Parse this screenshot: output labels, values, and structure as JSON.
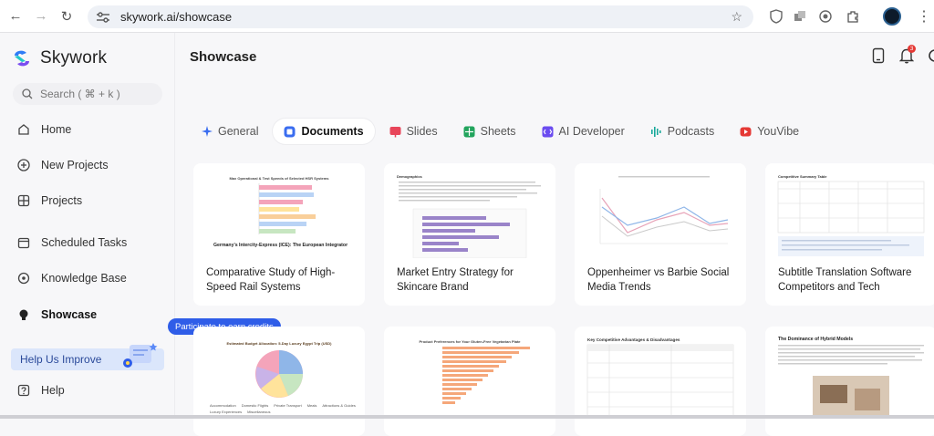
{
  "browser": {
    "url": "skywork.ai/showcase"
  },
  "sidebar": {
    "brand": "Skywork",
    "search_placeholder": "Search ( ⌘ + k )",
    "items": [
      {
        "label": "Home",
        "icon": "home-icon"
      },
      {
        "label": "New Projects",
        "icon": "plus-circle-icon"
      },
      {
        "label": "Projects",
        "icon": "grid-icon"
      },
      {
        "label": "Scheduled Tasks",
        "icon": "calendar-icon"
      },
      {
        "label": "Knowledge Base",
        "icon": "orbit-icon"
      },
      {
        "label": "Showcase",
        "icon": "bulb-icon",
        "active": true
      }
    ],
    "improve_label": "Help Us Improve",
    "improve_tooltip": "Participate to earn credits",
    "help_label": "Help"
  },
  "main": {
    "title": "Showcase",
    "notification_count": "3",
    "tabs": [
      {
        "label": "General",
        "color": "#3a6df0"
      },
      {
        "label": "Documents",
        "color": "#3a6df0",
        "active": true
      },
      {
        "label": "Slides",
        "color": "#e8455a"
      },
      {
        "label": "Sheets",
        "color": "#22a45d"
      },
      {
        "label": "AI Developer",
        "color": "#6b4cf0"
      },
      {
        "label": "Podcasts",
        "color": "#18a89a"
      },
      {
        "label": "YouVibe",
        "color": "#e53935"
      }
    ],
    "cards": [
      {
        "title": "Comparative Study of High-Speed Rail Systems",
        "thumb_heading": "Max Operational & Test Speeds of Selected HSR Systems",
        "thumb_caption": "Germany's Intercity-Express (ICE): The European Integrator"
      },
      {
        "title": "Market Entry Strategy for Skincare Brand",
        "thumb_heading": "Demographics"
      },
      {
        "title": "Oppenheimer vs Barbie Social Media Trends"
      },
      {
        "title": "Subtitle Translation Software Competitors and Tech",
        "thumb_heading": "Competitive Summary Table"
      },
      {
        "thumb_heading": "Estimated Budget Allocation: 5-Day Luxury Egypt Trip (USD)",
        "legend": [
          "Accommodation",
          "Domestic Flights",
          "Private Transport",
          "Meals",
          "Attractions & Guides",
          "Luxury Experiences",
          "Miscellaneous"
        ]
      },
      {
        "thumb_heading": "Product Preferences for Your Gluten-Free Vegetarian Plate"
      },
      {
        "thumb_heading": "Key Competitive Advantages & Disadvantages"
      },
      {
        "thumb_heading": "The Dominance of Hybrid Models"
      }
    ]
  },
  "colors": {
    "accent": "#2f5de8",
    "badge": "#e53935",
    "improve_bg": "#dbe6fb"
  }
}
